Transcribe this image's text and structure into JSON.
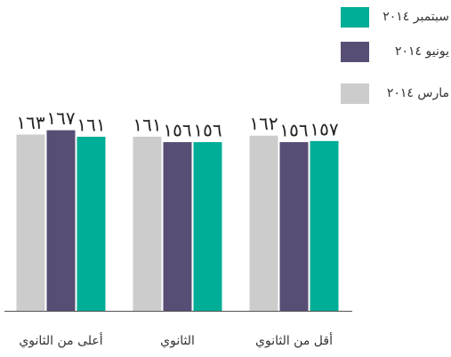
{
  "chart_data": {
    "type": "bar",
    "categories": [
      "أعلى من الثانوي",
      "الثانوي",
      "أقل من الثانوي"
    ],
    "series": [
      {
        "name": "مارس ٢٠١٤",
        "color": "#cccccc",
        "values": [
          163,
          161,
          162
        ],
        "value_labels": [
          "١٦٣",
          "١٦١",
          "١٦٢"
        ]
      },
      {
        "name": "يونيو ٢٠١٤",
        "color": "#584e75",
        "values": [
          167,
          156,
          156
        ],
        "value_labels": [
          "١٦٧",
          "١٥٦",
          "١٥٦"
        ]
      },
      {
        "name": "سبتمبر ٢٠١٤",
        "color": "#00ad96",
        "values": [
          161,
          156,
          157
        ],
        "value_labels": [
          "١٦١",
          "١٥٦",
          "١٥٧"
        ]
      }
    ],
    "ylim": [
      0,
      170
    ]
  }
}
